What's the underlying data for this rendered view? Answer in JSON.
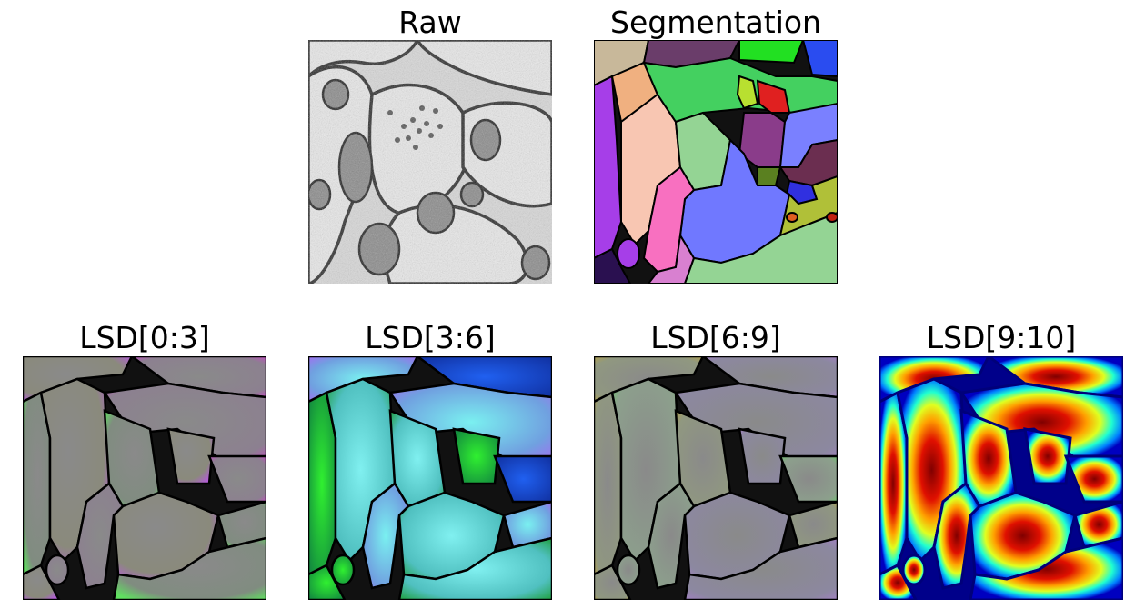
{
  "panels": {
    "raw": {
      "title": "Raw"
    },
    "segmentation": {
      "title": "Segmentation"
    },
    "lsd_0_3": {
      "title": "LSD[0:3]"
    },
    "lsd_3_6": {
      "title": "LSD[3:6]"
    },
    "lsd_6_9": {
      "title": "LSD[6:9]"
    },
    "lsd_9_10": {
      "title": "LSD[9:10]"
    }
  }
}
